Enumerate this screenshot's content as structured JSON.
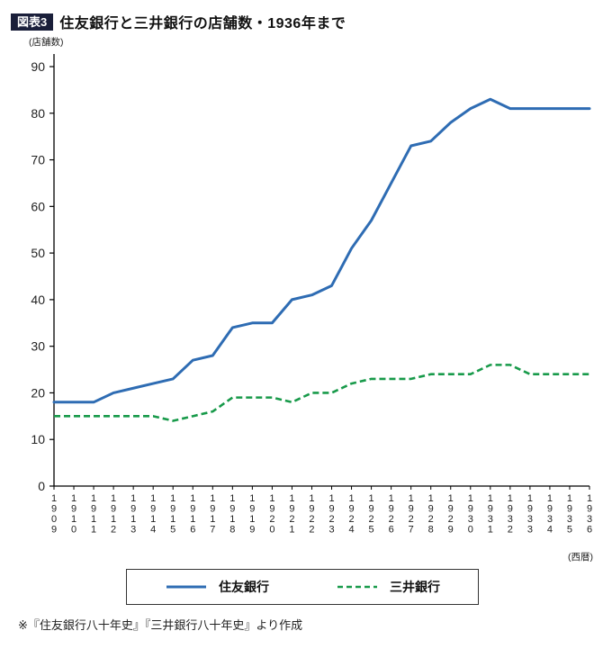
{
  "header": {
    "badge": "図表3",
    "title": "住友銀行と三井銀行の店舗数・1936年まで"
  },
  "colors": {
    "badge_bg": "#1a1f3a",
    "axis": "#000000",
    "tick_text": "#222222"
  },
  "chart_data": {
    "type": "line",
    "title": "住友銀行と三井銀行の店舗数・1936年まで",
    "x": [
      "1909",
      "1910",
      "1911",
      "1912",
      "1913",
      "1914",
      "1915",
      "1916",
      "1917",
      "1918",
      "1919",
      "1920",
      "1921",
      "1922",
      "1923",
      "1924",
      "1925",
      "1926",
      "1927",
      "1928",
      "1929",
      "1930",
      "1931",
      "1932",
      "1933",
      "1934",
      "1935",
      "1936"
    ],
    "series": [
      {
        "name": "住友銀行",
        "color": "#2e6cb3",
        "style": "solid",
        "values": [
          18,
          18,
          18,
          20,
          21,
          22,
          23,
          27,
          28,
          34,
          35,
          35,
          40,
          41,
          43,
          51,
          57,
          65,
          73,
          74,
          78,
          81,
          83,
          81,
          81,
          81,
          81,
          81
        ]
      },
      {
        "name": "三井銀行",
        "color": "#189a4a",
        "style": "dashed",
        "values": [
          15,
          15,
          15,
          15,
          15,
          15,
          14,
          15,
          16,
          19,
          19,
          19,
          18,
          20,
          20,
          22,
          23,
          23,
          23,
          24,
          24,
          24,
          26,
          26,
          24,
          24,
          24,
          24
        ]
      }
    ],
    "ylabel": "(店舗数)",
    "xlabel": "(西暦)",
    "ylim": [
      0,
      90
    ],
    "ytick_step": 10,
    "grid": false,
    "legend_position": "bottom"
  },
  "footer": {
    "source": "※『住友銀行八十年史』『三井銀行八十年史』より作成"
  }
}
